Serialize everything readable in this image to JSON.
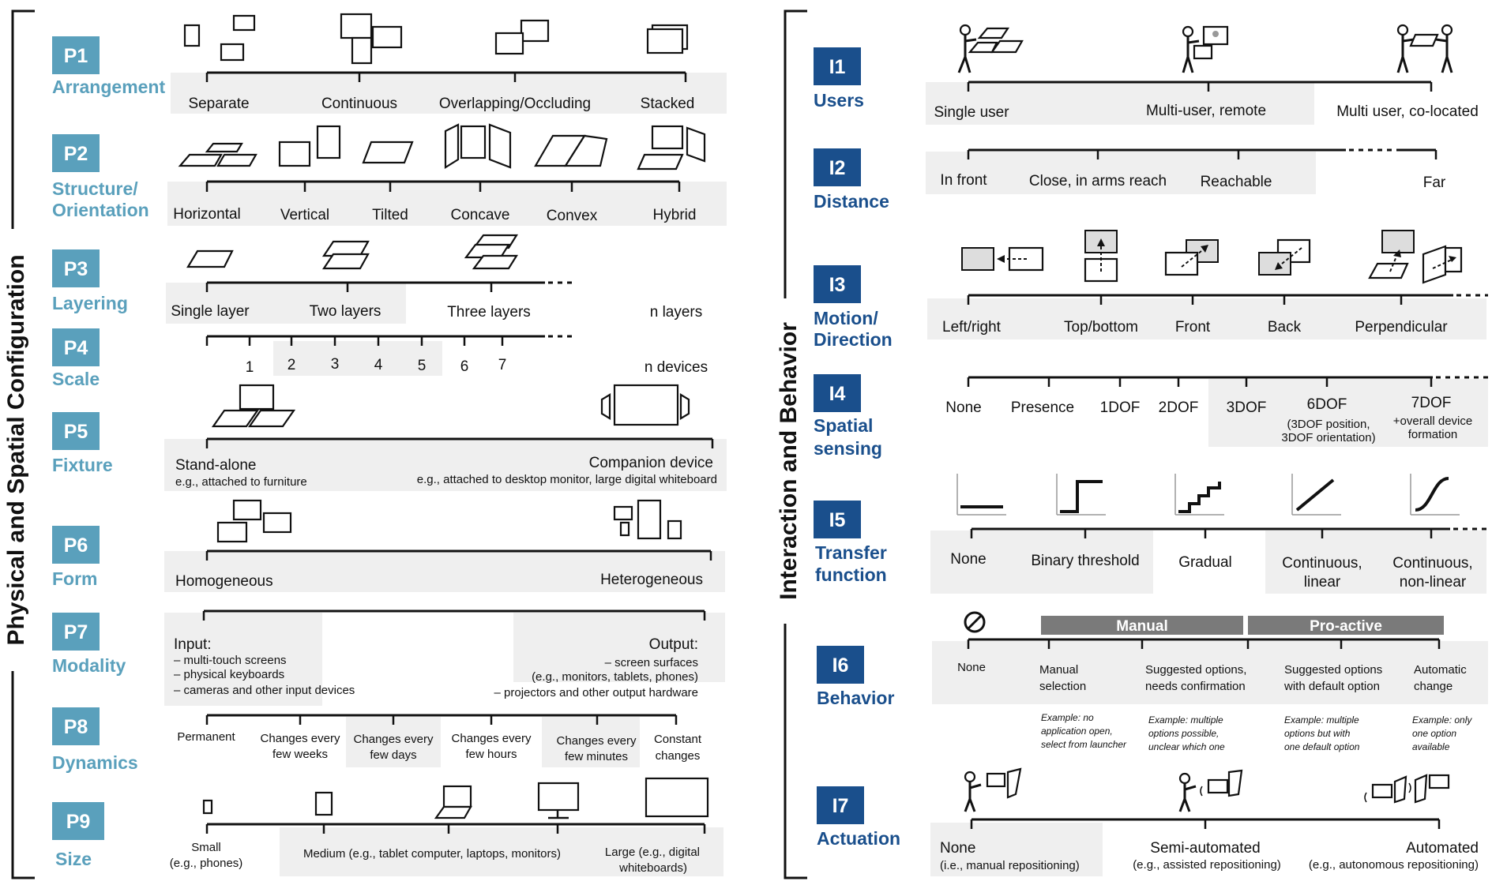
{
  "left_group": "Physical and Spatial Configuration",
  "right_group": "Interaction and Behavior",
  "dims": {
    "P1": {
      "id": "P1",
      "name": "Arrangement",
      "opts": [
        "Separate",
        "Continuous",
        "Overlapping/Occluding",
        "Stacked"
      ]
    },
    "P2": {
      "id": "P2",
      "name1": "Structure/",
      "name2": "Orientation",
      "opts": [
        "Horizontal",
        "Vertical",
        "Tilted",
        "Concave",
        "Convex",
        "Hybrid"
      ]
    },
    "P3": {
      "id": "P3",
      "name": "Layering",
      "opts": [
        "Single layer",
        "Two layers",
        "Three layers",
        "n layers"
      ]
    },
    "P4": {
      "id": "P4",
      "name": "Scale",
      "opts": [
        "1",
        "2",
        "3",
        "4",
        "5",
        "6",
        "7",
        "n devices"
      ]
    },
    "P5": {
      "id": "P5",
      "name": "Fixture",
      "opts": [
        "Stand-alone",
        "e.g., attached to furniture",
        "Companion device",
        "e.g., attached to desktop monitor, large digital whiteboard"
      ]
    },
    "P6": {
      "id": "P6",
      "name": "Form",
      "opts": [
        "Homogeneous",
        "Heterogeneous"
      ]
    },
    "P7": {
      "id": "P7",
      "name": "Modality",
      "opts": [
        "Input:",
        "– multi-touch screens",
        "– physical keyboards",
        "– cameras and other input devices",
        "Output:",
        "– screen surfaces",
        "(e.g., monitors, tablets, phones)",
        "– projectors and other output hardware"
      ]
    },
    "P8": {
      "id": "P8",
      "name": "Dynamics",
      "opts": [
        "Permanent",
        "Changes every",
        "few weeks",
        "Changes every",
        "few days",
        "Changes every",
        "few hours",
        "Changes every",
        "few minutes",
        "Constant",
        "changes"
      ]
    },
    "P9": {
      "id": "P9",
      "name": "Size",
      "opts": [
        "Small",
        "(e.g., phones)",
        "Medium (e.g., tablet computer, laptops, monitors)",
        "Large (e.g., digital",
        "whiteboards)"
      ]
    },
    "I1": {
      "id": "I1",
      "name": "Users",
      "opts": [
        "Single user",
        "Multi-user, remote",
        "Multi user, co-located"
      ]
    },
    "I2": {
      "id": "I2",
      "name": "Distance",
      "opts": [
        "In front",
        "Close, in arms reach",
        "Reachable",
        "Far"
      ]
    },
    "I3": {
      "id": "I3",
      "name1": "Motion/",
      "name2": "Direction",
      "opts": [
        "Left/right",
        "Top/bottom",
        "Front",
        "Back",
        "Perpendicular"
      ]
    },
    "I4": {
      "id": "I4",
      "name1": "Spatial",
      "name2": "sensing",
      "opts": [
        "None",
        "Presence",
        "1DOF",
        "2DOF",
        "3DOF",
        "6DOF",
        "(3DOF position,",
        "3DOF orientation)",
        "7DOF",
        "+overall device",
        "formation"
      ]
    },
    "I5": {
      "id": "I5",
      "name1": "Transfer",
      "name2": "function",
      "opts": [
        "None",
        "Binary threshold",
        "Gradual",
        "Continuous,",
        "linear",
        "Continuous,",
        "non-linear"
      ]
    },
    "I6": {
      "id": "I6",
      "name": "Behavior",
      "bar1": "Manual",
      "bar2": "Pro-active",
      "opts": [
        "None",
        "Manual",
        "selection",
        "Suggested options,",
        "needs confirmation",
        "Suggested options",
        "with default option",
        "Automatic",
        "change"
      ],
      "examples": [
        "Example: no",
        "application open,",
        "select from launcher",
        "Example: multiple",
        "options possible,",
        "unclear which one",
        "Example: multiple",
        "options but with",
        "one default option",
        "Example: only",
        "one option",
        "available"
      ]
    },
    "I7": {
      "id": "I7",
      "name": "Actuation",
      "opts": [
        "None",
        "(i.e., manual repositioning)",
        "Semi-automated",
        "(e.g., assisted repositioning)",
        "Automated",
        "(e.g., autonomous repositioning)"
      ]
    }
  },
  "colors": {
    "p_accent": "#5aa0bc",
    "i_accent": "#1a4f8c",
    "panel": "#efefef",
    "bar": "#7a7a7a"
  }
}
